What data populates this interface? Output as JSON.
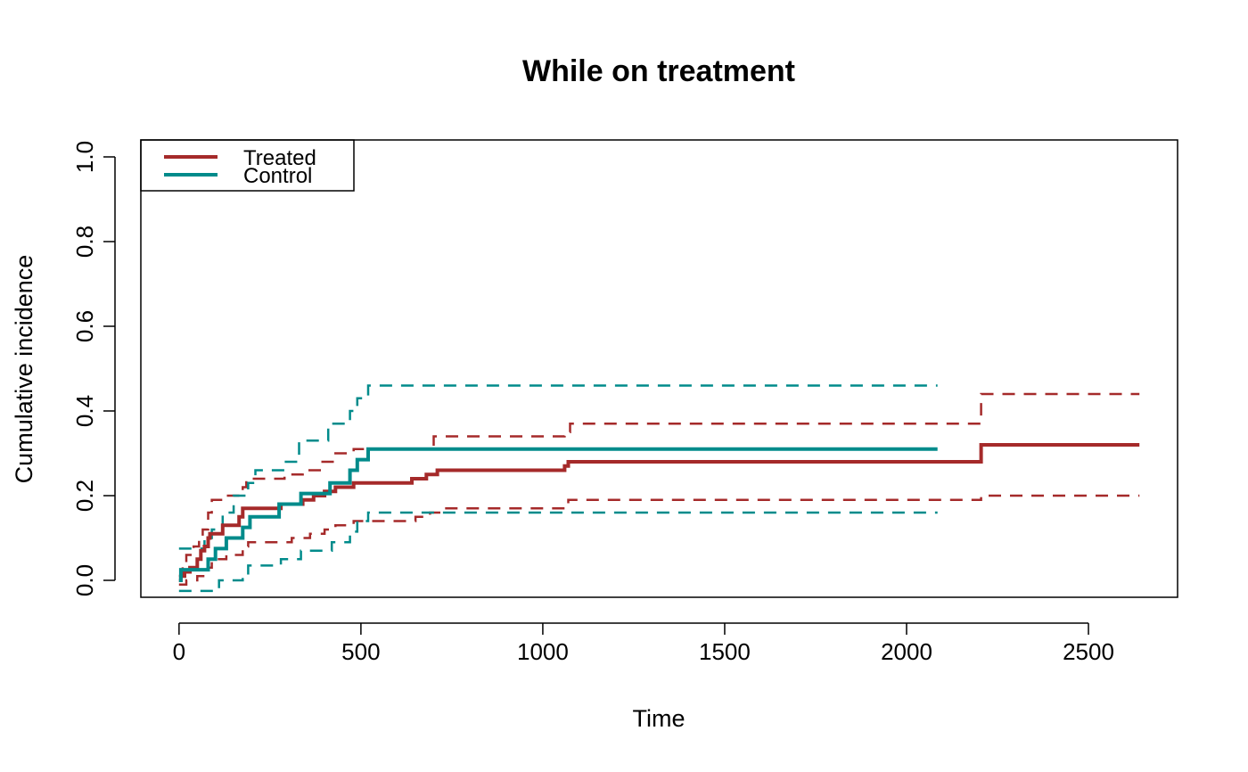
{
  "chart_data": {
    "type": "line",
    "title": "While on treatment",
    "xlabel": "Time",
    "ylabel": "Cumulative incidence",
    "xlim": [
      -105,
      2745
    ],
    "ylim": [
      -0.04,
      1.04
    ],
    "xticks": [
      "0",
      "500",
      "1000",
      "1500",
      "2000",
      "2500"
    ],
    "yticks": [
      "0.0",
      "0.2",
      "0.4",
      "0.6",
      "0.8",
      "1.0"
    ],
    "legend_position": "top-left",
    "grid": false,
    "colors": {
      "treated": "#a52a2a",
      "control": "#008b8b"
    },
    "series": [
      {
        "name": "Treated",
        "color": "#a52a2a",
        "steps": [
          [
            0,
            0.0
          ],
          [
            5,
            0.01
          ],
          [
            15,
            0.02
          ],
          [
            30,
            0.03
          ],
          [
            50,
            0.05
          ],
          [
            60,
            0.07
          ],
          [
            70,
            0.08
          ],
          [
            80,
            0.1
          ],
          [
            85,
            0.11
          ],
          [
            120,
            0.13
          ],
          [
            165,
            0.15
          ],
          [
            175,
            0.17
          ],
          [
            280,
            0.18
          ],
          [
            340,
            0.19
          ],
          [
            370,
            0.2
          ],
          [
            400,
            0.21
          ],
          [
            430,
            0.22
          ],
          [
            480,
            0.23
          ],
          [
            640,
            0.24
          ],
          [
            680,
            0.25
          ],
          [
            710,
            0.26
          ],
          [
            1060,
            0.27
          ],
          [
            1070,
            0.28
          ],
          [
            2205,
            0.32
          ],
          [
            2640,
            0.32
          ]
        ],
        "ci_upper": [
          [
            0,
            0.01
          ],
          [
            10,
            0.04
          ],
          [
            20,
            0.06
          ],
          [
            40,
            0.08
          ],
          [
            55,
            0.1
          ],
          [
            65,
            0.12
          ],
          [
            80,
            0.16
          ],
          [
            90,
            0.19
          ],
          [
            130,
            0.2
          ],
          [
            175,
            0.22
          ],
          [
            185,
            0.24
          ],
          [
            290,
            0.25
          ],
          [
            340,
            0.26
          ],
          [
            390,
            0.28
          ],
          [
            430,
            0.3
          ],
          [
            480,
            0.31
          ],
          [
            700,
            0.34
          ],
          [
            1060,
            0.35
          ],
          [
            1075,
            0.37
          ],
          [
            2205,
            0.44
          ],
          [
            2640,
            0.44
          ]
        ],
        "ci_lower": [
          [
            0,
            -0.01
          ],
          [
            20,
            0.0
          ],
          [
            50,
            0.01
          ],
          [
            80,
            0.03
          ],
          [
            90,
            0.05
          ],
          [
            130,
            0.06
          ],
          [
            175,
            0.08
          ],
          [
            190,
            0.09
          ],
          [
            310,
            0.1
          ],
          [
            360,
            0.11
          ],
          [
            400,
            0.12
          ],
          [
            430,
            0.13
          ],
          [
            480,
            0.14
          ],
          [
            650,
            0.15
          ],
          [
            690,
            0.16
          ],
          [
            720,
            0.17
          ],
          [
            1070,
            0.19
          ],
          [
            2205,
            0.2
          ],
          [
            2640,
            0.2
          ]
        ]
      },
      {
        "name": "Control",
        "color": "#008b8b",
        "steps": [
          [
            0,
            0.0
          ],
          [
            5,
            0.025
          ],
          [
            80,
            0.05
          ],
          [
            100,
            0.075
          ],
          [
            130,
            0.1
          ],
          [
            175,
            0.125
          ],
          [
            195,
            0.15
          ],
          [
            275,
            0.18
          ],
          [
            335,
            0.205
          ],
          [
            415,
            0.23
          ],
          [
            470,
            0.26
          ],
          [
            490,
            0.285
          ],
          [
            520,
            0.31
          ],
          [
            2085,
            0.31
          ]
        ],
        "ci_upper": [
          [
            0,
            0.075
          ],
          [
            70,
            0.1
          ],
          [
            90,
            0.12
          ],
          [
            120,
            0.16
          ],
          [
            150,
            0.2
          ],
          [
            190,
            0.23
          ],
          [
            210,
            0.26
          ],
          [
            290,
            0.28
          ],
          [
            330,
            0.33
          ],
          [
            410,
            0.37
          ],
          [
            470,
            0.4
          ],
          [
            490,
            0.43
          ],
          [
            520,
            0.46
          ],
          [
            2085,
            0.46
          ]
        ],
        "ci_lower": [
          [
            0,
            -0.025
          ],
          [
            100,
            -0.02
          ],
          [
            110,
            0.0
          ],
          [
            175,
            0.01
          ],
          [
            190,
            0.035
          ],
          [
            280,
            0.05
          ],
          [
            335,
            0.07
          ],
          [
            420,
            0.09
          ],
          [
            470,
            0.115
          ],
          [
            490,
            0.14
          ],
          [
            520,
            0.16
          ],
          [
            2085,
            0.16
          ]
        ]
      }
    ]
  }
}
